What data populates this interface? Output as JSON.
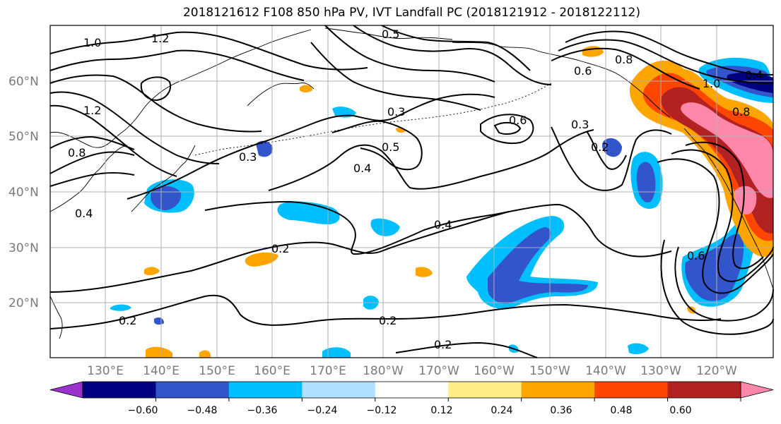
{
  "title": "2018121612 F108 850 hPa PV, IVT Landfall PC (2018121912 - 2018122112)",
  "map": {
    "lat_labels": [
      "60°N",
      "50°N",
      "40°N",
      "30°N",
      "20°N"
    ],
    "lon_labels": [
      "130°E",
      "140°E",
      "150°E",
      "160°E",
      "170°E",
      "180°W",
      "170°W",
      "160°W",
      "150°W",
      "140°W",
      "130°W",
      "120°W"
    ],
    "contour_labels": [
      "1.0",
      "1.2",
      "0.5",
      "0.4",
      "0.8",
      "0.6",
      "0.6",
      "0.3",
      "0.3",
      "0.3",
      "0.4",
      "0.5",
      "0.2",
      "0.4",
      "0.2",
      "0.2",
      "0.2",
      "0.2",
      "0.6",
      "1.0",
      "0.8",
      "0.8",
      "1.2",
      "0.4"
    ]
  },
  "colorbar": {
    "ticks": [
      "−0.60",
      "−0.48",
      "−0.36",
      "−0.24",
      "−0.12",
      "0.12",
      "0.24",
      "0.36",
      "0.48",
      "0.60"
    ],
    "colors": [
      "#9933cc",
      "#000080",
      "#3355cc",
      "#00bfff",
      "#b0e0ff",
      "#ffffff",
      "#ffee88",
      "#ffa500",
      "#ff4500",
      "#b22222",
      "#ff88aa"
    ]
  }
}
